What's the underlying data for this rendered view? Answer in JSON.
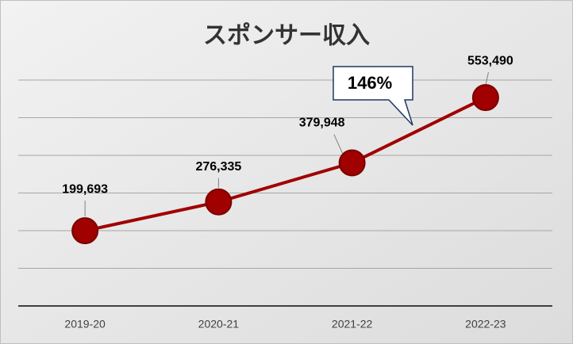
{
  "chart_data": {
    "type": "line",
    "title": "スポンサー収入",
    "categories": [
      "2019-20",
      "2020-21",
      "2021-22",
      "2022-23"
    ],
    "series": [
      {
        "name": "スポンサー収入",
        "color": "#a00000",
        "values": [
          199693,
          276335,
          379948,
          553490
        ],
        "value_labels": [
          "199,693",
          "276,335",
          "379,948",
          "553,490"
        ]
      }
    ],
    "annotations": [
      "146%"
    ],
    "ylim": [
      0,
      600000
    ],
    "yticks": [
      0,
      100000,
      200000,
      300000,
      400000,
      500000,
      600000
    ],
    "grid": true
  }
}
